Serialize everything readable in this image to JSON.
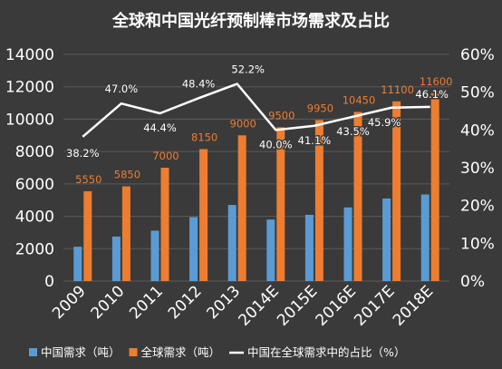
{
  "chart_data": {
    "type": "bar",
    "title": "全球和中国光纤预制棒市场需求及占比",
    "categories": [
      "2009",
      "2010",
      "2011",
      "2012",
      "2013",
      "2014E",
      "2015E",
      "2016E",
      "2017E",
      "2018E"
    ],
    "ylim": [
      0,
      14000
    ],
    "yticks": [
      "0",
      "2000",
      "4000",
      "6000",
      "8000",
      "10000",
      "12000",
      "14000"
    ],
    "y2lim": [
      0,
      60
    ],
    "y2ticks": [
      "0%",
      "10%",
      "20%",
      "30%",
      "40%",
      "50%",
      "60%"
    ],
    "grid": true,
    "legend_position": "bottom",
    "series": [
      {
        "name": "中国需求（吨）",
        "kind": "bar",
        "color": "#5b9bd5",
        "values": [
          2120,
          2750,
          3110,
          3950,
          4700,
          3800,
          4090,
          4550,
          5100,
          5350
        ]
      },
      {
        "name": "全球需求（吨）",
        "kind": "bar",
        "color": "#ed7d31",
        "values": [
          5550,
          5850,
          7000,
          8150,
          9000,
          9500,
          9950,
          10450,
          11100,
          11600
        ],
        "labels": [
          "5550",
          "5850",
          "7000",
          "8150",
          "9000",
          "9500",
          "9950",
          "10450",
          "11100",
          "11600"
        ]
      },
      {
        "name": "中国在全球需求中的占比（%）",
        "kind": "line",
        "axis": "right",
        "color": "#ffffff",
        "values": [
          38.2,
          47.0,
          44.4,
          48.4,
          52.2,
          40.0,
          41.1,
          43.5,
          45.9,
          46.1
        ],
        "labels": [
          "38.2%",
          "47.0%",
          "44.4%",
          "48.4%",
          "52.2%",
          "40.0%",
          "41.1%",
          "43.5%",
          "45.9%",
          "46.1%"
        ]
      }
    ]
  }
}
